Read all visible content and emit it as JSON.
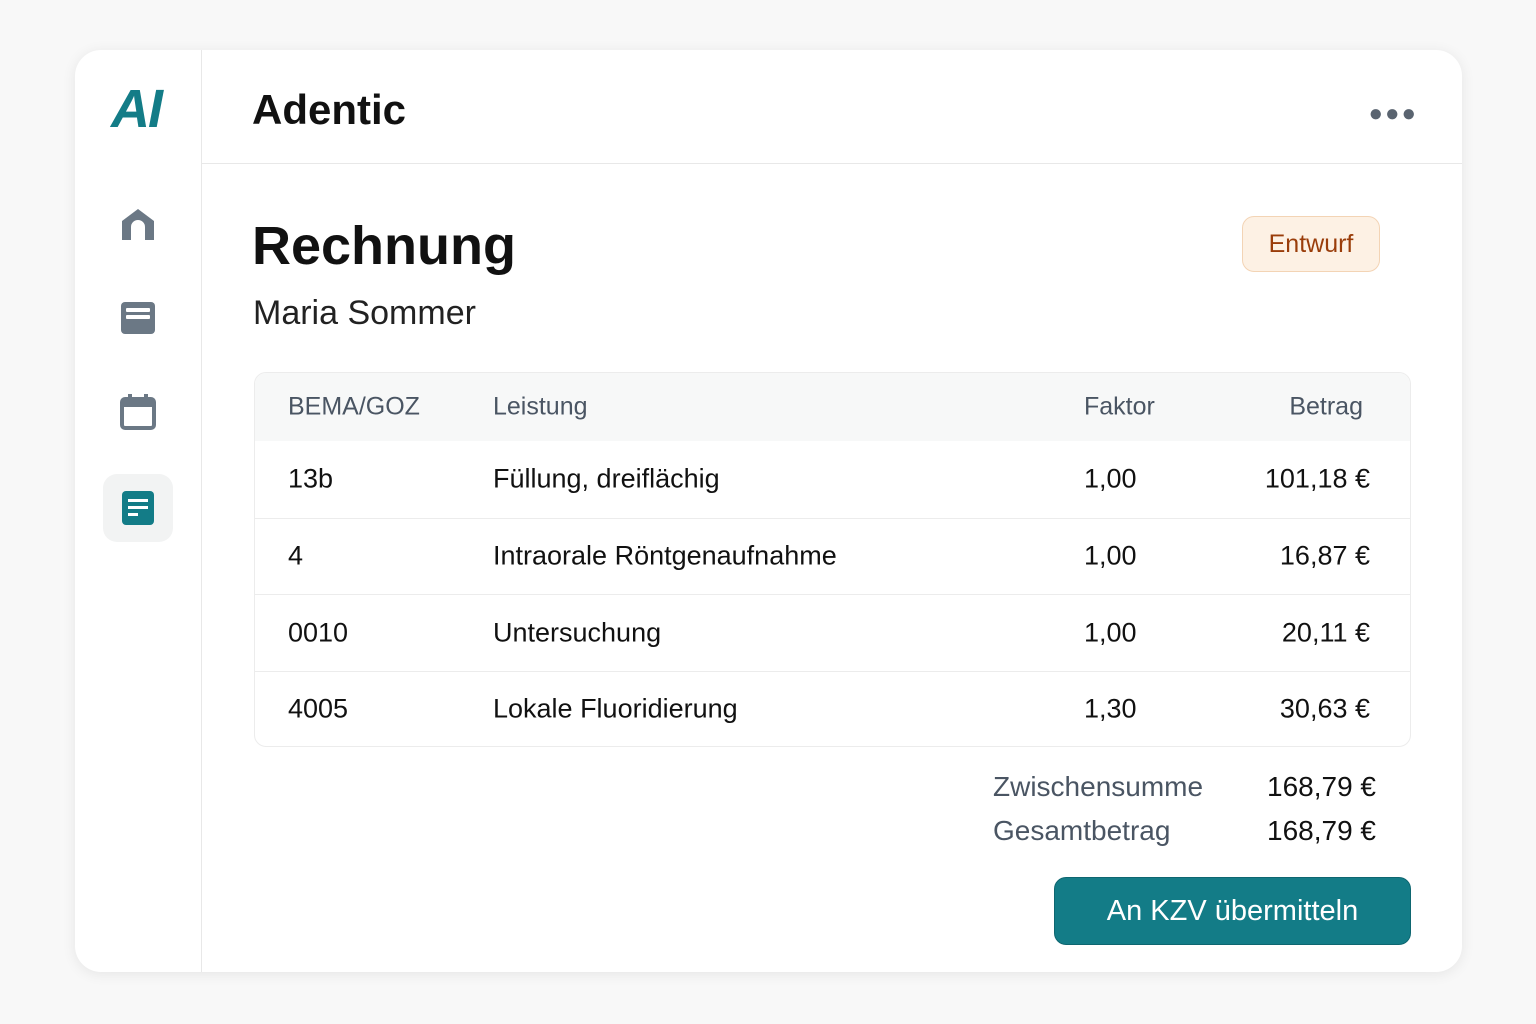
{
  "app": {
    "logo": "AI",
    "title": "Adentic"
  },
  "sidebar": {
    "items": [
      {
        "icon": "home-icon",
        "active": false
      },
      {
        "icon": "document-list-icon",
        "active": false
      },
      {
        "icon": "calendar-icon",
        "active": false
      },
      {
        "icon": "invoice-icon",
        "active": true
      }
    ]
  },
  "invoice": {
    "title": "Rechnung",
    "patient": "Maria Sommer",
    "status": "Entwurf",
    "columns": [
      "BEMA/GOZ",
      "Leistung",
      "Faktor",
      "Betrag"
    ],
    "rows": [
      {
        "code": "13b",
        "service": "Füllung, dreiflächig",
        "factor": "1,00",
        "amount": "101,18 €"
      },
      {
        "code": "4",
        "service": "Intraorale Röntgenaufnahme",
        "factor": "1,00",
        "amount": "16,87 €"
      },
      {
        "code": "0010",
        "service": "Untersuchung",
        "factor": "1,00",
        "amount": "20,11 €"
      },
      {
        "code": "4005",
        "service": "Lokale Fluoridierung",
        "factor": "1,30",
        "amount": "30,63 €"
      }
    ],
    "subtotal_label": "Zwischensumme",
    "subtotal": "168,79 €",
    "total_label": "Gesamtbetrag",
    "total": "168,79 €",
    "submit_label": "An KZV übermitteln"
  },
  "colors": {
    "accent": "#137c87",
    "badge_bg": "#fdf1e4",
    "badge_text": "#9a3d0a",
    "icon": "#6b7885"
  }
}
